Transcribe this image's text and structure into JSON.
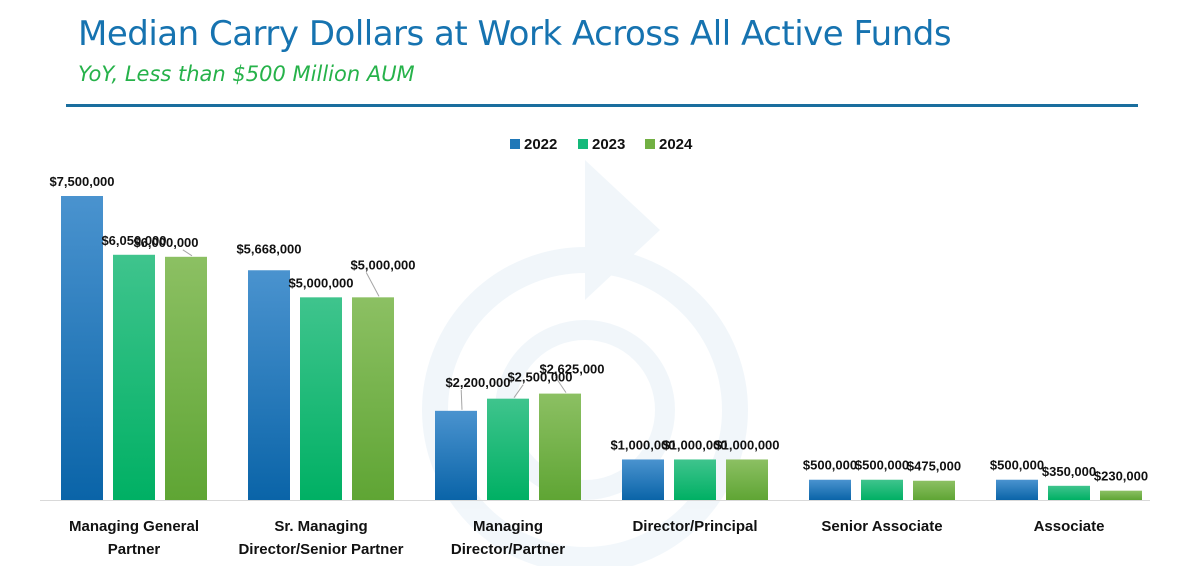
{
  "header": {
    "title": "Median Carry Dollars at Work Across All Active Funds",
    "subtitle": "YoY, Less than $500 Million AUM"
  },
  "colors": {
    "title": "#1673b0",
    "subtitle": "#26b24a",
    "rule": "#1a6e9e",
    "series_2022": "#1f78b8",
    "series_2023": "#14b97a",
    "series_2024": "#72b043"
  },
  "chart_data": {
    "type": "bar",
    "title": "Median Carry Dollars at Work Across All Active Funds",
    "subtitle": "YoY, Less than $500 Million AUM",
    "xlabel": "",
    "ylabel": "",
    "ylim": [
      0,
      8000000
    ],
    "grid": false,
    "legend": "top-center",
    "categories": [
      [
        "Managing General",
        "Partner"
      ],
      [
        "Sr. Managing",
        "Director/Senior Partner"
      ],
      [
        "Managing",
        "Director/Partner"
      ],
      [
        "Director/Principal"
      ],
      [
        "Senior Associate"
      ],
      [
        "Associate"
      ]
    ],
    "series": [
      {
        "name": "2022",
        "values": [
          7500000,
          5668000,
          2200000,
          1000000,
          500000,
          500000
        ],
        "labels": [
          "$7,500,000",
          "$5,668,000",
          "$2,200,000",
          "$1,000,000",
          "$500,000",
          "$500,000"
        ]
      },
      {
        "name": "2023",
        "values": [
          6050000,
          5000000,
          2500000,
          1000000,
          500000,
          350000
        ],
        "labels": [
          "$6,050,000",
          "$5,000,000",
          "$2,500,000",
          "$1,000,000",
          "$500,000",
          "$350,000"
        ]
      },
      {
        "name": "2024",
        "values": [
          6000000,
          5000000,
          2625000,
          1000000,
          475000,
          230000
        ],
        "labels": [
          "$6,000,000",
          "$5,000,000",
          "$2,625,000",
          "$1,000,000",
          "$475,000",
          "$230,000"
        ]
      }
    ]
  }
}
